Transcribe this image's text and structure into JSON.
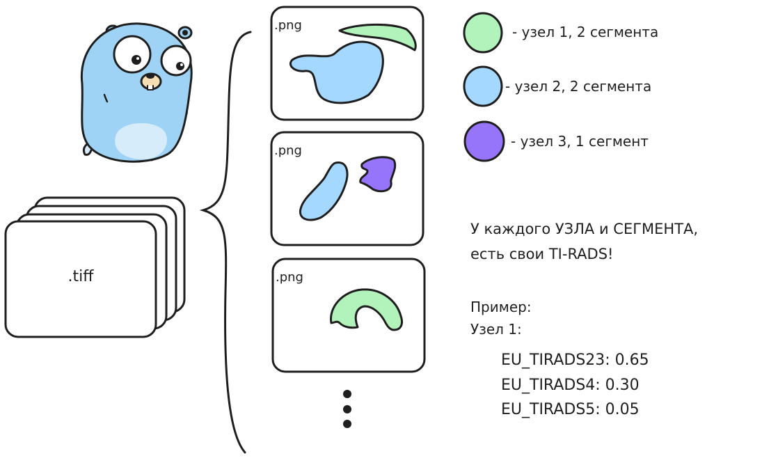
{
  "tiff": {
    "label": ".tiff"
  },
  "frames": [
    {
      "label": ".png",
      "segments": [
        {
          "node": 1
        },
        {
          "node": 2
        }
      ]
    },
    {
      "label": ".png",
      "segments": [
        {
          "node": 2
        },
        {
          "node": 3
        }
      ]
    },
    {
      "label": ".png",
      "segments": [
        {
          "node": 1
        }
      ]
    }
  ],
  "legend": [
    {
      "color": "#b2f2bb",
      "text": "- узел 1, 2 сегмента"
    },
    {
      "color": "#a5d8ff",
      "text": "- узел 2, 2 сегмента"
    },
    {
      "color": "#9775fa",
      "text": "- узел 3, 1 сегмент"
    }
  ],
  "note": {
    "line1": "У каждого УЗЛА и СЕГМЕНТА,",
    "line2": "есть свои TI-RADS!"
  },
  "example": {
    "title": "Пример:",
    "node": "Узел 1:",
    "values": [
      "EU_TIRADS23: 0.65",
      "EU_TIRADS4: 0.30",
      "EU_TIRADS5: 0.05"
    ]
  },
  "colors": {
    "stroke": "#1e1e1e",
    "green": "#b2f2bb",
    "blue": "#a5d8ff",
    "purple": "#9775fa",
    "gopher_body": "#9fd3f5",
    "gopher_belly": "#d6ecfb"
  }
}
